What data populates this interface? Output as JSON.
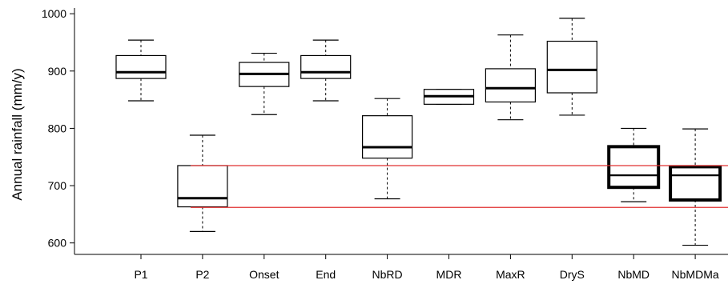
{
  "chart_data": {
    "type": "boxplot",
    "title": "",
    "xlabel": "",
    "ylabel": "Annual rainfall (mm/y)",
    "ylim": [
      580,
      1010
    ],
    "yticks": [
      600,
      700,
      800,
      900,
      1000
    ],
    "grid": false,
    "legend": "none",
    "colors": {
      "box": "#000000",
      "reference_line": "#e03030"
    },
    "reference_lines": [
      {
        "y": 735
      },
      {
        "y": 662
      }
    ],
    "categories": [
      "P1",
      "P2",
      "Onset",
      "End",
      "NbRD",
      "MDR",
      "MaxR",
      "DryS",
      "NbMD",
      "NbMDMa"
    ],
    "boxes": [
      {
        "label": "P1",
        "whisker_low": 848,
        "q1": 887,
        "median": 898,
        "q3": 927,
        "whisker_high": 954,
        "bold": false
      },
      {
        "label": "P2",
        "whisker_low": 620,
        "q1": 663,
        "median": 678,
        "q3": 735,
        "whisker_high": 788,
        "bold": false
      },
      {
        "label": "Onset",
        "whisker_low": 824,
        "q1": 873,
        "median": 895,
        "q3": 915,
        "whisker_high": 931,
        "bold": false
      },
      {
        "label": "End",
        "whisker_low": 848,
        "q1": 887,
        "median": 898,
        "q3": 927,
        "whisker_high": 954,
        "bold": false
      },
      {
        "label": "NbRD",
        "whisker_low": 677,
        "q1": 748,
        "median": 767,
        "q3": 822,
        "whisker_high": 852,
        "bold": false
      },
      {
        "label": "MDR",
        "whisker_low": 842,
        "q1": 842,
        "median": 856,
        "q3": 868,
        "whisker_high": 868,
        "bold": false
      },
      {
        "label": "MaxR",
        "whisker_low": 815,
        "q1": 846,
        "median": 870,
        "q3": 904,
        "whisker_high": 963,
        "bold": false
      },
      {
        "label": "DryS",
        "whisker_low": 823,
        "q1": 862,
        "median": 902,
        "q3": 952,
        "whisker_high": 992,
        "bold": false
      },
      {
        "label": "NbMD",
        "whisker_low": 672,
        "q1": 697,
        "median": 718,
        "q3": 768,
        "whisker_high": 800,
        "bold": true
      },
      {
        "label": "NbMDMa",
        "whisker_low": 596,
        "q1": 675,
        "median": 718,
        "q3": 733,
        "whisker_high": 799,
        "bold": true
      }
    ]
  }
}
